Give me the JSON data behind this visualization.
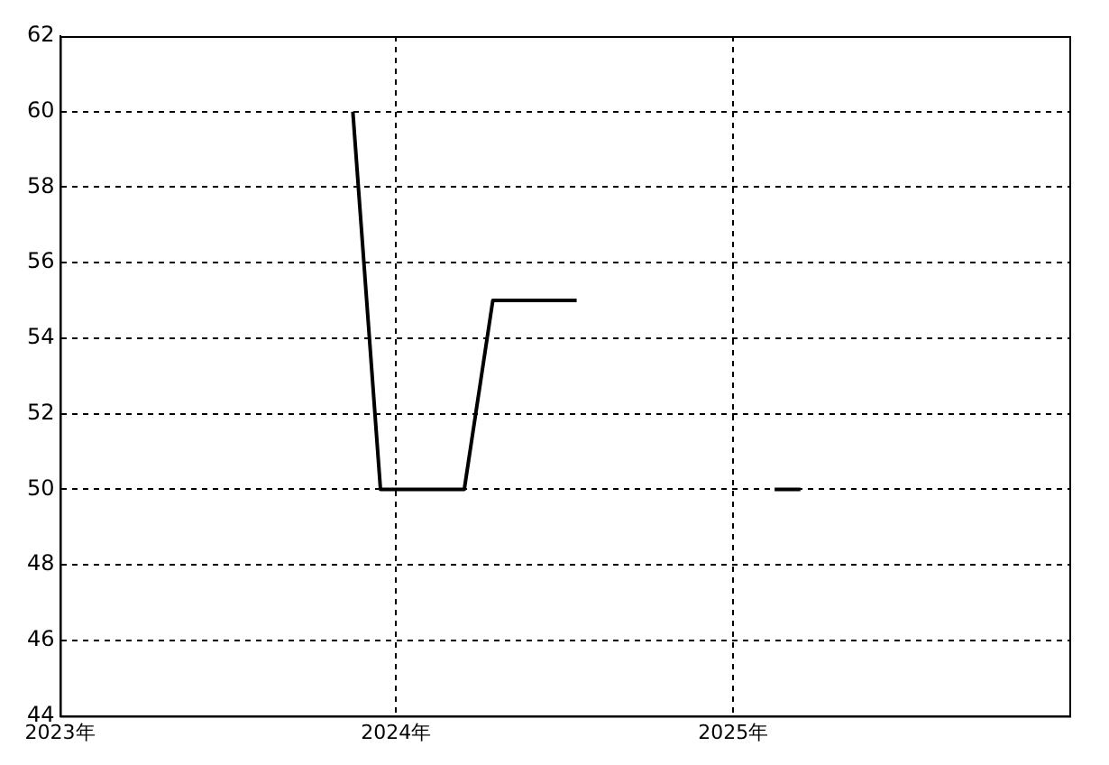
{
  "chart_data": {
    "type": "line",
    "x": [
      "2023-11-15",
      "2023-12-15",
      "2024-01-15",
      "2024-02-15",
      "2024-03-15",
      "2024-04-15",
      "2024-05-15",
      "2024-06-15",
      "2024-07-15",
      "2024-08-15",
      "2024-09-15",
      "2024-10-15",
      "2024-11-15",
      "2024-12-15",
      "2025-01-15",
      "2025-02-15",
      "2025-03-15"
    ],
    "series": [
      {
        "color": "#000000",
        "values": [
          60,
          50,
          50,
          50,
          50,
          55,
          55,
          55,
          55,
          null,
          null,
          null,
          null,
          null,
          null,
          50,
          50
        ]
      }
    ],
    "xlim": [
      "2023",
      "2026"
    ],
    "xticks": [
      {
        "value": "2023",
        "label": "2023年"
      },
      {
        "value": "2024",
        "label": "2024年"
      },
      {
        "value": "2025",
        "label": "2025年"
      }
    ],
    "ylim": [
      44,
      62
    ],
    "yticks": [
      44,
      46,
      48,
      50,
      52,
      54,
      56,
      58,
      60,
      62
    ],
    "grid": true,
    "legend": false,
    "marker": "none",
    "line_style": "solid"
  }
}
